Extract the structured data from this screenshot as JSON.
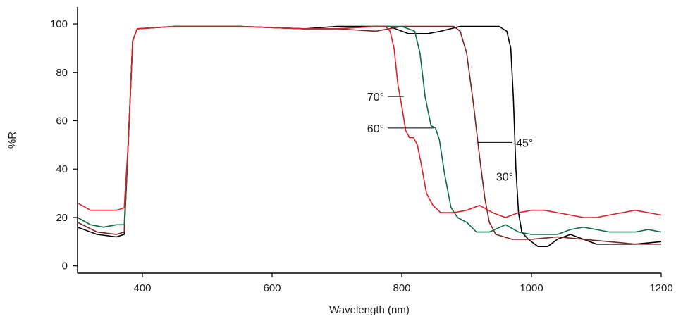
{
  "chart_data": {
    "type": "line",
    "title": "",
    "xlabel": "Wavelength (nm)",
    "ylabel": "%R",
    "xlim": [
      300,
      1200
    ],
    "ylim": [
      -3,
      107
    ],
    "xticks": [
      400,
      600,
      800,
      1000,
      1200
    ],
    "yticks": [
      0,
      20,
      40,
      60,
      80,
      100
    ],
    "grid": false,
    "series": [
      {
        "name": "30°",
        "color": "#000000",
        "points": [
          [
            300,
            16
          ],
          [
            330,
            13
          ],
          [
            360,
            12
          ],
          [
            372,
            13
          ],
          [
            378,
            50
          ],
          [
            385,
            93
          ],
          [
            392,
            98
          ],
          [
            450,
            99
          ],
          [
            550,
            99
          ],
          [
            650,
            98
          ],
          [
            700,
            99
          ],
          [
            780,
            99
          ],
          [
            790,
            98
          ],
          [
            810,
            96
          ],
          [
            840,
            96
          ],
          [
            860,
            97
          ],
          [
            890,
            99
          ],
          [
            950,
            99
          ],
          [
            962,
            97
          ],
          [
            968,
            90
          ],
          [
            972,
            70
          ],
          [
            976,
            40
          ],
          [
            980,
            22
          ],
          [
            985,
            14
          ],
          [
            995,
            11
          ],
          [
            1010,
            8
          ],
          [
            1025,
            8
          ],
          [
            1040,
            11
          ],
          [
            1060,
            13
          ],
          [
            1080,
            11
          ],
          [
            1100,
            9
          ],
          [
            1130,
            9
          ],
          [
            1160,
            9
          ],
          [
            1200,
            10
          ]
        ]
      },
      {
        "name": "45°",
        "color": "#7a2426",
        "points": [
          [
            300,
            18
          ],
          [
            330,
            14
          ],
          [
            360,
            13
          ],
          [
            372,
            14
          ],
          [
            378,
            50
          ],
          [
            385,
            93
          ],
          [
            392,
            98
          ],
          [
            450,
            99
          ],
          [
            550,
            99
          ],
          [
            650,
            98
          ],
          [
            700,
            98
          ],
          [
            760,
            97
          ],
          [
            800,
            99
          ],
          [
            850,
            99
          ],
          [
            880,
            99
          ],
          [
            890,
            97
          ],
          [
            900,
            88
          ],
          [
            910,
            68
          ],
          [
            920,
            45
          ],
          [
            928,
            28
          ],
          [
            935,
            18
          ],
          [
            945,
            13
          ],
          [
            970,
            11
          ],
          [
            1000,
            11
          ],
          [
            1040,
            12
          ],
          [
            1080,
            11
          ],
          [
            1120,
            10
          ],
          [
            1160,
            9
          ],
          [
            1200,
            9
          ]
        ]
      },
      {
        "name": "60°",
        "color": "#0f6b45",
        "points": [
          [
            300,
            20
          ],
          [
            320,
            17
          ],
          [
            340,
            16
          ],
          [
            360,
            17
          ],
          [
            372,
            17
          ],
          [
            378,
            50
          ],
          [
            385,
            93
          ],
          [
            392,
            98
          ],
          [
            450,
            99
          ],
          [
            550,
            99
          ],
          [
            650,
            98
          ],
          [
            700,
            98
          ],
          [
            760,
            99
          ],
          [
            800,
            99
          ],
          [
            820,
            97
          ],
          [
            828,
            88
          ],
          [
            836,
            70
          ],
          [
            845,
            58
          ],
          [
            852,
            57
          ],
          [
            858,
            52
          ],
          [
            866,
            38
          ],
          [
            876,
            24
          ],
          [
            886,
            20
          ],
          [
            900,
            18
          ],
          [
            915,
            14
          ],
          [
            935,
            14
          ],
          [
            960,
            17
          ],
          [
            980,
            14
          ],
          [
            1000,
            13
          ],
          [
            1020,
            13
          ],
          [
            1040,
            13
          ],
          [
            1060,
            15
          ],
          [
            1080,
            16
          ],
          [
            1100,
            15
          ],
          [
            1120,
            14
          ],
          [
            1140,
            14
          ],
          [
            1160,
            14
          ],
          [
            1180,
            15
          ],
          [
            1200,
            14
          ]
        ]
      },
      {
        "name": "70°",
        "color": "#e01f2a",
        "points": [
          [
            300,
            26
          ],
          [
            320,
            23
          ],
          [
            340,
            23
          ],
          [
            360,
            23
          ],
          [
            372,
            24
          ],
          [
            378,
            50
          ],
          [
            385,
            93
          ],
          [
            392,
            98
          ],
          [
            450,
            99
          ],
          [
            550,
            99
          ],
          [
            650,
            98
          ],
          [
            700,
            98
          ],
          [
            760,
            99
          ],
          [
            775,
            99
          ],
          [
            782,
            97
          ],
          [
            788,
            90
          ],
          [
            794,
            75
          ],
          [
            800,
            66
          ],
          [
            806,
            56
          ],
          [
            812,
            53
          ],
          [
            818,
            53
          ],
          [
            824,
            50
          ],
          [
            830,
            42
          ],
          [
            838,
            30
          ],
          [
            848,
            25
          ],
          [
            860,
            22
          ],
          [
            880,
            22
          ],
          [
            900,
            23
          ],
          [
            920,
            25
          ],
          [
            940,
            22
          ],
          [
            960,
            20
          ],
          [
            980,
            22
          ],
          [
            1000,
            23
          ],
          [
            1020,
            23
          ],
          [
            1040,
            22
          ],
          [
            1060,
            21
          ],
          [
            1080,
            20
          ],
          [
            1100,
            20
          ],
          [
            1120,
            21
          ],
          [
            1140,
            22
          ],
          [
            1160,
            23
          ],
          [
            1180,
            22
          ],
          [
            1200,
            21
          ]
        ]
      }
    ],
    "annotations": [
      {
        "label": "70°",
        "series": "70°",
        "text_x": 775,
        "text_y": 70,
        "line_to": [
          803,
          70
        ]
      },
      {
        "label": "60°",
        "series": "60°",
        "text_x": 775,
        "text_y": 57,
        "line_to": [
          850,
          57
        ]
      },
      {
        "label": "45°",
        "series": "45°",
        "text_x": 974,
        "text_y": 51,
        "line_to": [
          918,
          51
        ]
      },
      {
        "label": "30°",
        "series": "30°",
        "text_x": 974,
        "text_y": 37,
        "line_to": [
          977,
          37
        ]
      }
    ]
  }
}
